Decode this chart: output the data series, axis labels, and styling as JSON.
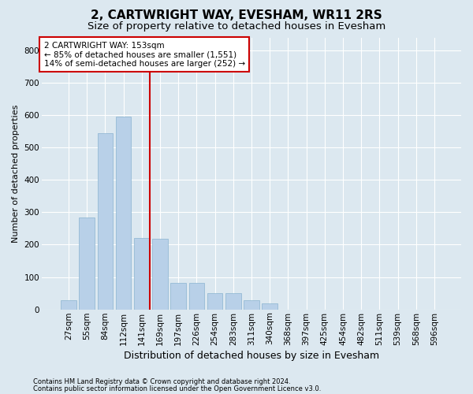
{
  "title": "2, CARTWRIGHT WAY, EVESHAM, WR11 2RS",
  "subtitle": "Size of property relative to detached houses in Evesham",
  "xlabel": "Distribution of detached houses by size in Evesham",
  "ylabel": "Number of detached properties",
  "footnote1": "Contains HM Land Registry data © Crown copyright and database right 2024.",
  "footnote2": "Contains public sector information licensed under the Open Government Licence v3.0.",
  "categories": [
    "27sqm",
    "55sqm",
    "84sqm",
    "112sqm",
    "141sqm",
    "169sqm",
    "197sqm",
    "226sqm",
    "254sqm",
    "283sqm",
    "311sqm",
    "340sqm",
    "368sqm",
    "397sqm",
    "425sqm",
    "454sqm",
    "482sqm",
    "511sqm",
    "539sqm",
    "568sqm",
    "596sqm"
  ],
  "values": [
    28,
    285,
    545,
    595,
    220,
    218,
    82,
    82,
    50,
    50,
    28,
    18,
    0,
    0,
    0,
    0,
    0,
    0,
    0,
    0,
    0
  ],
  "bar_color": "#b8d0e8",
  "bar_edgecolor": "#8ab4d0",
  "background_color": "#dce8f0",
  "grid_color": "#ffffff",
  "vline_color": "#cc0000",
  "vline_x": 4.42,
  "annotation_line1": "2 CARTWRIGHT WAY: 153sqm",
  "annotation_line2": "← 85% of detached houses are smaller (1,551)",
  "annotation_line3": "14% of semi-detached houses are larger (252) →",
  "annotation_box_facecolor": "#ffffff",
  "annotation_box_edgecolor": "#cc0000",
  "ylim": [
    0,
    840
  ],
  "yticks": [
    0,
    100,
    200,
    300,
    400,
    500,
    600,
    700,
    800
  ],
  "title_fontsize": 11,
  "subtitle_fontsize": 9.5,
  "ylabel_fontsize": 8,
  "xlabel_fontsize": 9,
  "tick_fontsize": 7.5,
  "annot_fontsize": 7.5,
  "footnote_fontsize": 6
}
